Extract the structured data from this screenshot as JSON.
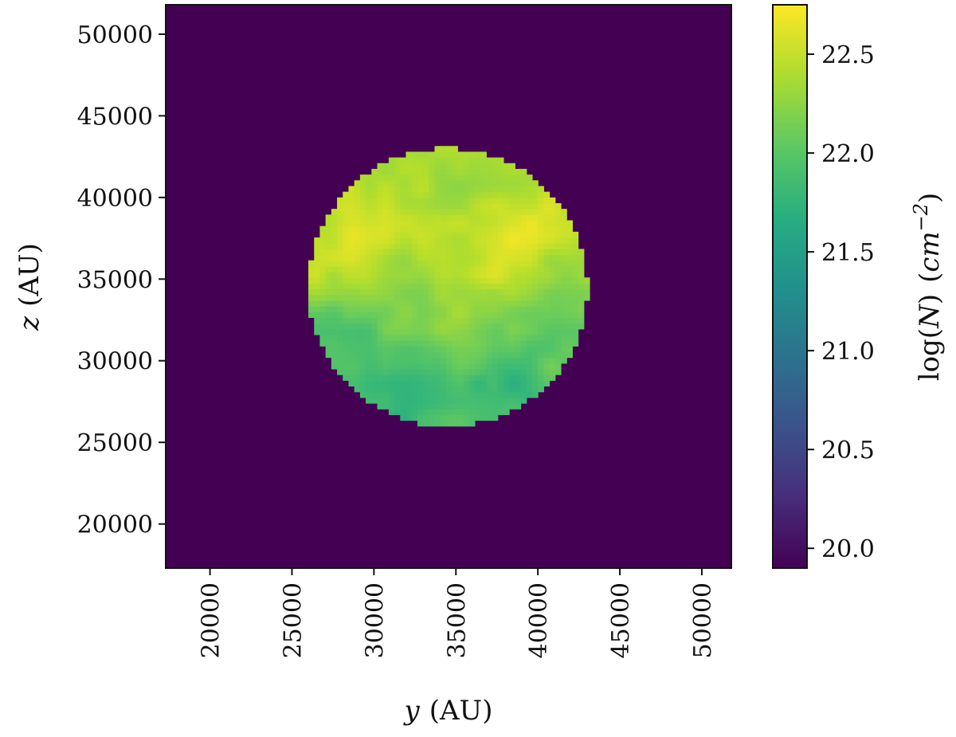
{
  "chart_data": {
    "type": "heatmap",
    "title": "",
    "x_axis": {
      "label_var": "y",
      "label_unit": "(AU)",
      "lim": [
        17300,
        51800
      ],
      "ticks": [
        20000,
        25000,
        30000,
        35000,
        40000,
        45000,
        50000
      ],
      "tick_labels": [
        "20000",
        "25000",
        "30000",
        "35000",
        "40000",
        "45000",
        "50000"
      ]
    },
    "y_axis": {
      "label_var": "z",
      "label_unit": "(AU)",
      "lim": [
        17300,
        51800
      ],
      "ticks": [
        20000,
        25000,
        30000,
        35000,
        40000,
        45000,
        50000
      ],
      "tick_labels": [
        "20000",
        "25000",
        "30000",
        "35000",
        "40000",
        "45000",
        "50000"
      ]
    },
    "colorbar": {
      "label_fn": "log",
      "label_var": "N",
      "label_unit_base": "cm",
      "label_unit_exp": "−2",
      "colormap": "viridis",
      "range": [
        19.9,
        22.75
      ],
      "ticks": [
        20.0,
        20.5,
        21.0,
        21.5,
        22.0,
        22.5
      ],
      "tick_labels": [
        "20.0",
        "20.5",
        "21.0",
        "21.5",
        "22.0",
        "22.5"
      ]
    },
    "field": {
      "description": "column density map of a spherical cloud; background at minimum",
      "background_value": 19.9,
      "sphere_center": [
        34500,
        34500
      ],
      "sphere_radius": 8500,
      "pixel_size": 350,
      "upper_hemisphere_value": 22.5,
      "lower_hemisphere_value": 21.9,
      "peak_value": 22.7,
      "peak_location": [
        35800,
        35700
      ]
    }
  }
}
